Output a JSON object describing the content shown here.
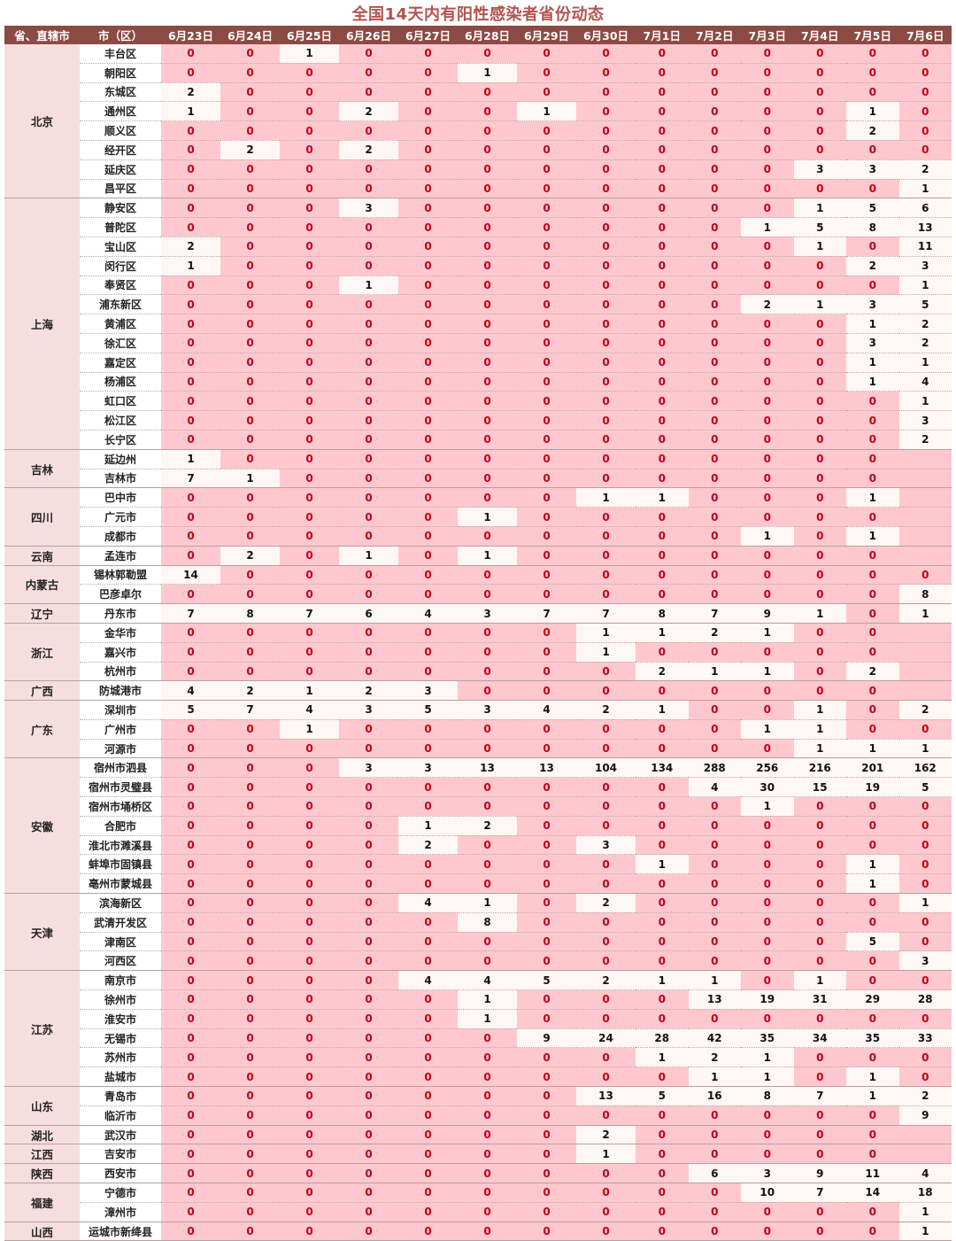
{
  "title": "全国14天内有阳性感染者省份动态",
  "headers": {
    "province": "省、直辖市",
    "city": "市（区）",
    "dates": [
      "6月23日",
      "6月24日",
      "6月25日",
      "6月26日",
      "6月27日",
      "6月28日",
      "6月29日",
      "6月30日",
      "7月1日",
      "7月2日",
      "7月3日",
      "7月4日",
      "7月5日",
      "7月6日"
    ]
  },
  "colors": {
    "header_bg": "#8c4a45",
    "zero_cell_bg": "#ffc8ce",
    "nonzero_cell_bg": "#fff6f6",
    "zero_text": "#c0001a",
    "title": "#b5534e"
  },
  "provinces": [
    {
      "name": "北京",
      "cities": [
        {
          "name": "丰台区",
          "values": [
            0,
            0,
            1,
            0,
            0,
            0,
            0,
            0,
            0,
            0,
            0,
            0,
            0,
            0
          ]
        },
        {
          "name": "朝阳区",
          "values": [
            0,
            0,
            0,
            0,
            0,
            1,
            0,
            0,
            0,
            0,
            0,
            0,
            0,
            0
          ]
        },
        {
          "name": "东城区",
          "values": [
            2,
            0,
            0,
            0,
            0,
            0,
            0,
            0,
            0,
            0,
            0,
            0,
            0,
            0
          ]
        },
        {
          "name": "通州区",
          "values": [
            1,
            0,
            0,
            2,
            0,
            0,
            1,
            0,
            0,
            0,
            0,
            0,
            1,
            0
          ]
        },
        {
          "name": "顺义区",
          "values": [
            0,
            0,
            0,
            0,
            0,
            0,
            0,
            0,
            0,
            0,
            0,
            0,
            2,
            0
          ]
        },
        {
          "name": "经开区",
          "values": [
            0,
            2,
            0,
            2,
            0,
            0,
            0,
            0,
            0,
            0,
            0,
            0,
            0,
            0
          ]
        },
        {
          "name": "延庆区",
          "values": [
            0,
            0,
            0,
            0,
            0,
            0,
            0,
            0,
            0,
            0,
            0,
            3,
            3,
            2
          ]
        },
        {
          "name": "昌平区",
          "values": [
            0,
            0,
            0,
            0,
            0,
            0,
            0,
            0,
            0,
            0,
            0,
            0,
            0,
            1
          ]
        }
      ]
    },
    {
      "name": "上海",
      "cities": [
        {
          "name": "静安区",
          "values": [
            0,
            0,
            0,
            3,
            0,
            0,
            0,
            0,
            0,
            0,
            0,
            1,
            5,
            6
          ]
        },
        {
          "name": "普陀区",
          "values": [
            0,
            0,
            0,
            0,
            0,
            0,
            0,
            0,
            0,
            0,
            1,
            5,
            8,
            13
          ]
        },
        {
          "name": "宝山区",
          "values": [
            2,
            0,
            0,
            0,
            0,
            0,
            0,
            0,
            0,
            0,
            0,
            1,
            0,
            11
          ]
        },
        {
          "name": "闵行区",
          "values": [
            1,
            0,
            0,
            0,
            0,
            0,
            0,
            0,
            0,
            0,
            0,
            0,
            2,
            3
          ]
        },
        {
          "name": "奉贤区",
          "values": [
            0,
            0,
            0,
            1,
            0,
            0,
            0,
            0,
            0,
            0,
            0,
            0,
            0,
            1
          ]
        },
        {
          "name": "浦东新区",
          "values": [
            0,
            0,
            0,
            0,
            0,
            0,
            0,
            0,
            0,
            0,
            2,
            1,
            3,
            5
          ]
        },
        {
          "name": "黄浦区",
          "values": [
            0,
            0,
            0,
            0,
            0,
            0,
            0,
            0,
            0,
            0,
            0,
            0,
            1,
            2
          ]
        },
        {
          "name": "徐汇区",
          "values": [
            0,
            0,
            0,
            0,
            0,
            0,
            0,
            0,
            0,
            0,
            0,
            0,
            3,
            2
          ]
        },
        {
          "name": "嘉定区",
          "values": [
            0,
            0,
            0,
            0,
            0,
            0,
            0,
            0,
            0,
            0,
            0,
            0,
            1,
            1
          ]
        },
        {
          "name": "杨浦区",
          "values": [
            0,
            0,
            0,
            0,
            0,
            0,
            0,
            0,
            0,
            0,
            0,
            0,
            1,
            4
          ]
        },
        {
          "name": "虹口区",
          "values": [
            0,
            0,
            0,
            0,
            0,
            0,
            0,
            0,
            0,
            0,
            0,
            0,
            0,
            1
          ]
        },
        {
          "name": "松江区",
          "values": [
            0,
            0,
            0,
            0,
            0,
            0,
            0,
            0,
            0,
            0,
            0,
            0,
            0,
            3
          ]
        },
        {
          "name": "长宁区",
          "values": [
            0,
            0,
            0,
            0,
            0,
            0,
            0,
            0,
            0,
            0,
            0,
            0,
            0,
            2
          ]
        }
      ]
    },
    {
      "name": "吉林",
      "cities": [
        {
          "name": "延边州",
          "values": [
            1,
            0,
            0,
            0,
            0,
            0,
            0,
            0,
            0,
            0,
            0,
            0,
            0,
            null
          ]
        },
        {
          "name": "吉林市",
          "values": [
            7,
            1,
            0,
            0,
            0,
            0,
            0,
            0,
            0,
            0,
            0,
            0,
            0,
            null
          ]
        }
      ]
    },
    {
      "name": "四川",
      "cities": [
        {
          "name": "巴中市",
          "values": [
            0,
            0,
            0,
            0,
            0,
            0,
            0,
            1,
            1,
            0,
            0,
            0,
            1,
            null
          ]
        },
        {
          "name": "广元市",
          "values": [
            0,
            0,
            0,
            0,
            0,
            1,
            0,
            0,
            0,
            0,
            0,
            0,
            0,
            null
          ]
        },
        {
          "name": "成都市",
          "values": [
            0,
            0,
            0,
            0,
            0,
            0,
            0,
            0,
            0,
            0,
            1,
            0,
            1,
            null
          ]
        }
      ]
    },
    {
      "name": "云南",
      "cities": [
        {
          "name": "孟连市",
          "values": [
            0,
            2,
            0,
            1,
            0,
            1,
            0,
            0,
            0,
            0,
            0,
            0,
            0,
            null
          ]
        }
      ]
    },
    {
      "name": "内蒙古",
      "cities": [
        {
          "name": "锡林郭勒盟",
          "values": [
            14,
            0,
            0,
            0,
            0,
            0,
            0,
            0,
            0,
            0,
            0,
            0,
            0,
            0
          ]
        },
        {
          "name": "巴彦卓尔",
          "values": [
            0,
            0,
            0,
            0,
            0,
            0,
            0,
            0,
            0,
            0,
            0,
            0,
            0,
            8
          ]
        }
      ]
    },
    {
      "name": "辽宁",
      "cities": [
        {
          "name": "丹东市",
          "values": [
            7,
            8,
            7,
            6,
            4,
            3,
            7,
            7,
            8,
            7,
            9,
            1,
            0,
            1
          ]
        }
      ]
    },
    {
      "name": "浙江",
      "cities": [
        {
          "name": "金华市",
          "values": [
            0,
            0,
            0,
            0,
            0,
            0,
            0,
            1,
            1,
            2,
            1,
            0,
            0,
            null
          ]
        },
        {
          "name": "嘉兴市",
          "values": [
            0,
            0,
            0,
            0,
            0,
            0,
            0,
            1,
            0,
            0,
            0,
            0,
            0,
            null
          ]
        },
        {
          "name": "杭州市",
          "values": [
            0,
            0,
            0,
            0,
            0,
            0,
            0,
            0,
            2,
            1,
            1,
            0,
            2,
            null
          ]
        }
      ]
    },
    {
      "name": "广西",
      "cities": [
        {
          "name": "防城港市",
          "values": [
            4,
            2,
            1,
            2,
            3,
            0,
            0,
            0,
            0,
            0,
            0,
            0,
            0,
            null
          ]
        }
      ]
    },
    {
      "name": "广东",
      "cities": [
        {
          "name": "深圳市",
          "values": [
            5,
            7,
            4,
            3,
            5,
            3,
            4,
            2,
            1,
            0,
            0,
            1,
            0,
            2
          ]
        },
        {
          "name": "广州市",
          "values": [
            0,
            0,
            1,
            0,
            0,
            0,
            0,
            0,
            0,
            0,
            1,
            1,
            0,
            0
          ]
        },
        {
          "name": "河源市",
          "values": [
            0,
            0,
            0,
            0,
            0,
            0,
            0,
            0,
            0,
            0,
            0,
            1,
            1,
            1
          ]
        }
      ]
    },
    {
      "name": "安徽",
      "cities": [
        {
          "name": "宿州市泗县",
          "values": [
            0,
            0,
            0,
            3,
            3,
            13,
            13,
            104,
            134,
            288,
            256,
            216,
            201,
            162
          ]
        },
        {
          "name": "宿州市灵璧县",
          "values": [
            0,
            0,
            0,
            0,
            0,
            0,
            0,
            0,
            0,
            4,
            30,
            15,
            19,
            5
          ]
        },
        {
          "name": "宿州市埇桥区",
          "values": [
            0,
            0,
            0,
            0,
            0,
            0,
            0,
            0,
            0,
            0,
            1,
            0,
            0,
            0
          ]
        },
        {
          "name": "合肥市",
          "values": [
            0,
            0,
            0,
            0,
            1,
            2,
            0,
            0,
            0,
            0,
            0,
            0,
            0,
            0
          ]
        },
        {
          "name": "淮北市濉溪县",
          "values": [
            0,
            0,
            0,
            0,
            2,
            0,
            0,
            3,
            0,
            0,
            0,
            0,
            0,
            0
          ]
        },
        {
          "name": "蚌埠市固镇县",
          "values": [
            0,
            0,
            0,
            0,
            0,
            0,
            0,
            0,
            1,
            0,
            0,
            0,
            1,
            0
          ]
        },
        {
          "name": "亳州市蒙城县",
          "values": [
            0,
            0,
            0,
            0,
            0,
            0,
            0,
            0,
            0,
            0,
            0,
            0,
            1,
            0
          ]
        }
      ]
    },
    {
      "name": "天津",
      "cities": [
        {
          "name": "滨海新区",
          "values": [
            0,
            0,
            0,
            0,
            4,
            1,
            0,
            2,
            0,
            0,
            0,
            0,
            0,
            1
          ]
        },
        {
          "name": "武清开发区",
          "values": [
            0,
            0,
            0,
            0,
            0,
            8,
            0,
            0,
            0,
            0,
            0,
            0,
            0,
            0
          ]
        },
        {
          "name": "津南区",
          "values": [
            0,
            0,
            0,
            0,
            0,
            0,
            0,
            0,
            0,
            0,
            0,
            0,
            5,
            0
          ]
        },
        {
          "name": "河西区",
          "values": [
            0,
            0,
            0,
            0,
            0,
            0,
            0,
            0,
            0,
            0,
            0,
            0,
            0,
            3
          ]
        }
      ]
    },
    {
      "name": "江苏",
      "cities": [
        {
          "name": "南京市",
          "values": [
            0,
            0,
            0,
            0,
            4,
            4,
            5,
            2,
            1,
            1,
            0,
            1,
            0,
            0
          ]
        },
        {
          "name": "徐州市",
          "values": [
            0,
            0,
            0,
            0,
            0,
            1,
            0,
            0,
            0,
            13,
            19,
            31,
            29,
            28
          ]
        },
        {
          "name": "淮安市",
          "values": [
            0,
            0,
            0,
            0,
            0,
            1,
            0,
            0,
            0,
            0,
            0,
            0,
            0,
            0
          ]
        },
        {
          "name": "无锡市",
          "values": [
            0,
            0,
            0,
            0,
            0,
            0,
            9,
            24,
            28,
            42,
            35,
            34,
            35,
            33
          ]
        },
        {
          "name": "苏州市",
          "values": [
            0,
            0,
            0,
            0,
            0,
            0,
            0,
            0,
            1,
            2,
            1,
            0,
            0,
            0
          ]
        },
        {
          "name": "盐城市",
          "values": [
            0,
            0,
            0,
            0,
            0,
            0,
            0,
            0,
            0,
            1,
            1,
            0,
            1,
            0
          ]
        }
      ]
    },
    {
      "name": "山东",
      "cities": [
        {
          "name": "青岛市",
          "values": [
            0,
            0,
            0,
            0,
            0,
            0,
            0,
            13,
            5,
            16,
            8,
            7,
            1,
            2
          ]
        },
        {
          "name": "临沂市",
          "values": [
            0,
            0,
            0,
            0,
            0,
            0,
            0,
            0,
            0,
            0,
            0,
            0,
            0,
            9
          ]
        }
      ]
    },
    {
      "name": "湖北",
      "cities": [
        {
          "name": "武汉市",
          "values": [
            0,
            0,
            0,
            0,
            0,
            0,
            0,
            2,
            0,
            0,
            0,
            0,
            0,
            null
          ]
        }
      ]
    },
    {
      "name": "江西",
      "cities": [
        {
          "name": "吉安市",
          "values": [
            0,
            0,
            0,
            0,
            0,
            0,
            0,
            1,
            0,
            0,
            0,
            0,
            0,
            null
          ]
        }
      ]
    },
    {
      "name": "陕西",
      "cities": [
        {
          "name": "西安市",
          "values": [
            0,
            0,
            0,
            0,
            0,
            0,
            0,
            0,
            0,
            6,
            3,
            9,
            11,
            4
          ]
        }
      ]
    },
    {
      "name": "福建",
      "cities": [
        {
          "name": "宁德市",
          "values": [
            0,
            0,
            0,
            0,
            0,
            0,
            0,
            0,
            0,
            0,
            10,
            7,
            14,
            18
          ]
        },
        {
          "name": "漳州市",
          "values": [
            0,
            0,
            0,
            0,
            0,
            0,
            0,
            0,
            0,
            0,
            0,
            0,
            0,
            1
          ]
        }
      ]
    },
    {
      "name": "山西",
      "cities": [
        {
          "name": "运城市新绛县",
          "values": [
            0,
            0,
            0,
            0,
            0,
            0,
            0,
            0,
            0,
            0,
            0,
            0,
            0,
            1
          ]
        }
      ]
    }
  ]
}
